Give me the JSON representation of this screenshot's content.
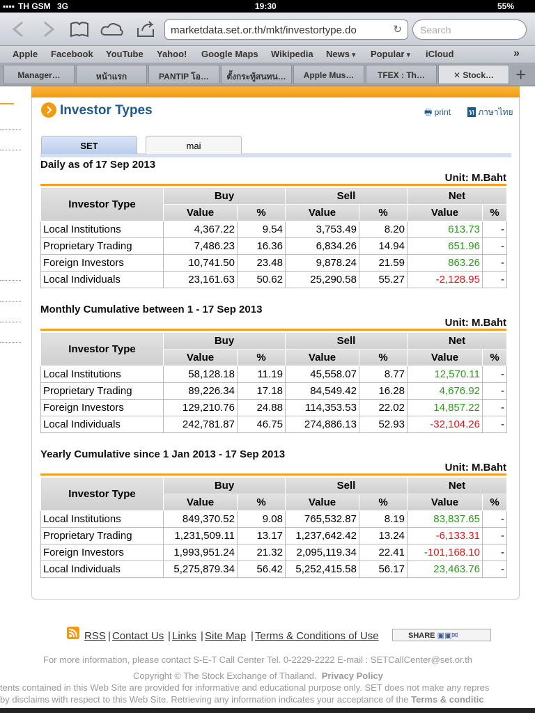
{
  "status_bar": {
    "carrier": "TH GSM",
    "network": "3G",
    "time": "19:30",
    "battery": "55%"
  },
  "browser": {
    "url": "marketdata.set.or.th/mkt/investortype.do",
    "search_placeholder": "Search",
    "bookmarks": [
      "Apple",
      "Facebook",
      "YouTube",
      "Yahoo!",
      "Google Maps",
      "Wikipedia",
      "News",
      "Popular",
      "iCloud"
    ],
    "tabs": [
      "Manager…",
      "หน้าแรก",
      "PANTIP โอ…",
      "ตั้งกระทู้สนทน…",
      "Apple Mus…",
      "TFEX : Th…",
      "Stock…"
    ]
  },
  "page": {
    "title": "Investor Types",
    "print": "print",
    "thai": "ภาษาไทย",
    "market_tabs": [
      "SET",
      "mai"
    ],
    "columns": {
      "group": [
        "Investor Type",
        "Buy",
        "Sell",
        "Net"
      ],
      "sub": [
        "Value",
        "%",
        "Value",
        "%",
        "Value",
        "%"
      ]
    },
    "unit": "Unit: M.Baht",
    "sections": [
      {
        "heading": "Daily as of 17 Sep 2013",
        "rows": [
          [
            "Local Institutions",
            "4,367.22",
            "9.54",
            "3,753.49",
            "8.20",
            "613.73",
            "-"
          ],
          [
            "Proprietary Trading",
            "7,486.23",
            "16.36",
            "6,834.26",
            "14.94",
            "651.96",
            "-"
          ],
          [
            "Foreign Investors",
            "10,741.50",
            "23.48",
            "9,878.24",
            "21.59",
            "863.26",
            "-"
          ],
          [
            "Local Individuals",
            "23,161.63",
            "50.62",
            "25,290.58",
            "55.27",
            "-2,128.95",
            "-"
          ]
        ]
      },
      {
        "heading": "Monthly Cumulative between 1 - 17 Sep 2013",
        "rows": [
          [
            "Local Institutions",
            "58,128.18",
            "11.19",
            "45,558.07",
            "8.77",
            "12,570.11",
            "-"
          ],
          [
            "Proprietary Trading",
            "89,226.34",
            "17.18",
            "84,549.42",
            "16.28",
            "4,676.92",
            "-"
          ],
          [
            "Foreign Investors",
            "129,210.76",
            "24.88",
            "114,353.53",
            "22.02",
            "14,857.22",
            "-"
          ],
          [
            "Local Individuals",
            "242,781.87",
            "46.75",
            "274,886.13",
            "52.93",
            "-32,104.26",
            "-"
          ]
        ]
      },
      {
        "heading": "Yearly Cumulative since 1 Jan 2013 - 17 Sep 2013",
        "rows": [
          [
            "Local Institutions",
            "849,370.52",
            "9.08",
            "765,532.87",
            "8.19",
            "83,837.65",
            "-"
          ],
          [
            "Proprietary Trading",
            "1,231,509.11",
            "13.17",
            "1,237,642.42",
            "13.24",
            "-6,133.31",
            "-"
          ],
          [
            "Foreign Investors",
            "1,993,951.24",
            "21.32",
            "2,095,119.34",
            "22.41",
            "-101,168.10",
            "-"
          ],
          [
            "Local Individuals",
            "5,275,879.34",
            "56.42",
            "5,252,415.58",
            "56.17",
            "23,463.76",
            "-"
          ]
        ]
      }
    ]
  },
  "footer": {
    "links": [
      "RSS",
      "Contact Us",
      "Links",
      "Site Map",
      "Terms & Conditions of Use"
    ],
    "share": "SHARE",
    "info": "For more information, please contact S-E-T Call Center Tel. 0-2229-2222 E-mail : SETCallCenter@set.or.th",
    "copyright": "Copyright © The Stock Exchange of Thailand.",
    "privacy": "Privacy Policy",
    "disclaimer_1": "tents contained in this Web Site are provided for informative and educational purpose only. SET does not make any repres",
    "disclaimer_2": "by disclaims with respect to this Web Site. Retrieving any information indicates your acceptance of the",
    "disclaimer_terms": "Terms & conditic"
  }
}
